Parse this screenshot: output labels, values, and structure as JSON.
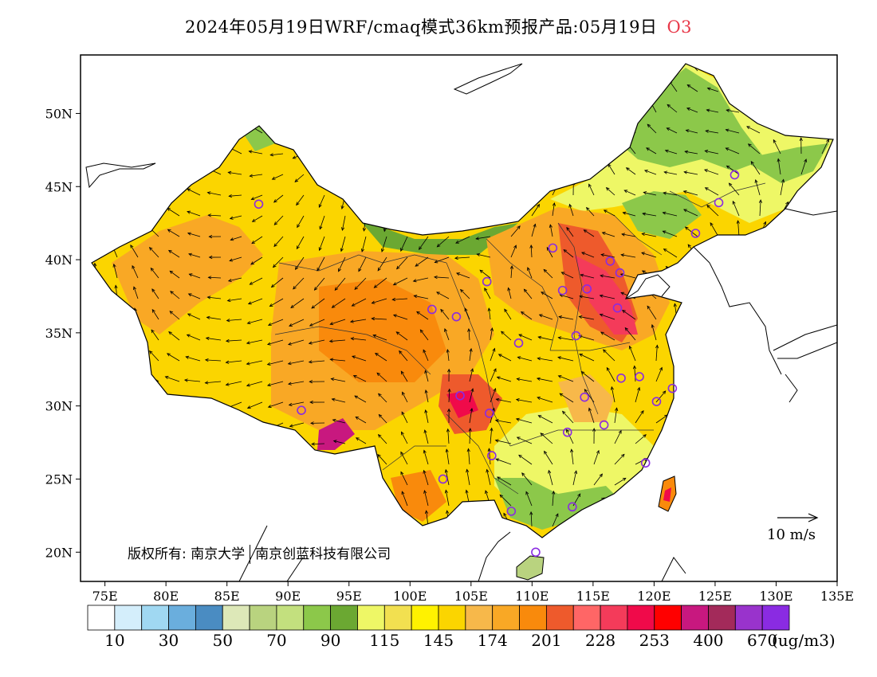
{
  "title": {
    "main": "2024年05月19日WRF/cmaq模式36km预报产品:05月19日",
    "pollutant": "O3",
    "pollutant_color": "#e8394a"
  },
  "map": {
    "lon_ticks": [
      "75E",
      "80E",
      "85E",
      "90E",
      "95E",
      "100E",
      "105E",
      "110E",
      "115E",
      "120E",
      "125E",
      "130E",
      "135E"
    ],
    "lat_ticks": [
      "20N",
      "25N",
      "30N",
      "35N",
      "40N",
      "45N",
      "50N"
    ],
    "lon_range": [
      73,
      135
    ],
    "lat_range": [
      18,
      54
    ],
    "scale_label": "10 m/s",
    "copyright": {
      "part1": "版权所有: 南京大学",
      "part2": "南京创蓝科技有限公司"
    },
    "stations": [
      [
        87.6,
        43.8
      ],
      [
        91.1,
        29.7
      ],
      [
        101.8,
        36.6
      ],
      [
        103.8,
        36.1
      ],
      [
        106.3,
        38.5
      ],
      [
        104.1,
        30.7
      ],
      [
        106.5,
        29.5
      ],
      [
        108.9,
        34.3
      ],
      [
        111.7,
        40.8
      ],
      [
        112.5,
        37.9
      ],
      [
        114.5,
        38.0
      ],
      [
        116.4,
        39.9
      ],
      [
        117.2,
        39.1
      ],
      [
        117.0,
        36.7
      ],
      [
        113.6,
        34.8
      ],
      [
        114.3,
        30.6
      ],
      [
        112.9,
        28.2
      ],
      [
        115.9,
        28.7
      ],
      [
        117.3,
        31.9
      ],
      [
        118.8,
        32.0
      ],
      [
        120.2,
        30.3
      ],
      [
        121.5,
        31.2
      ],
      [
        119.3,
        26.1
      ],
      [
        113.3,
        23.1
      ],
      [
        108.3,
        22.8
      ],
      [
        110.3,
        20.0
      ],
      [
        106.7,
        26.6
      ],
      [
        102.7,
        25.0
      ],
      [
        123.4,
        41.8
      ],
      [
        125.3,
        43.9
      ],
      [
        126.6,
        45.8
      ]
    ]
  },
  "colorbar": {
    "colors": [
      "#ffffff",
      "#d4eefb",
      "#a0d8f2",
      "#6aaedd",
      "#4a8cc2",
      "#dde8b8",
      "#b9d37f",
      "#c3e07e",
      "#8cc84a",
      "#6ba832",
      "#eef766",
      "#f2e050",
      "#fff200",
      "#fbd500",
      "#f7b84a",
      "#f9a825",
      "#f98a0c",
      "#ee5a2c",
      "#ff6666",
      "#f43b5a",
      "#f00a4a",
      "#ff0000",
      "#c8187f",
      "#a32a5a",
      "#9933cc",
      "#8a2be2"
    ],
    "labels": [
      "10",
      "30",
      "50",
      "70",
      "90",
      "115",
      "145",
      "174",
      "201",
      "228",
      "253",
      "400",
      "670"
    ],
    "unit": "(ug/m3)"
  }
}
